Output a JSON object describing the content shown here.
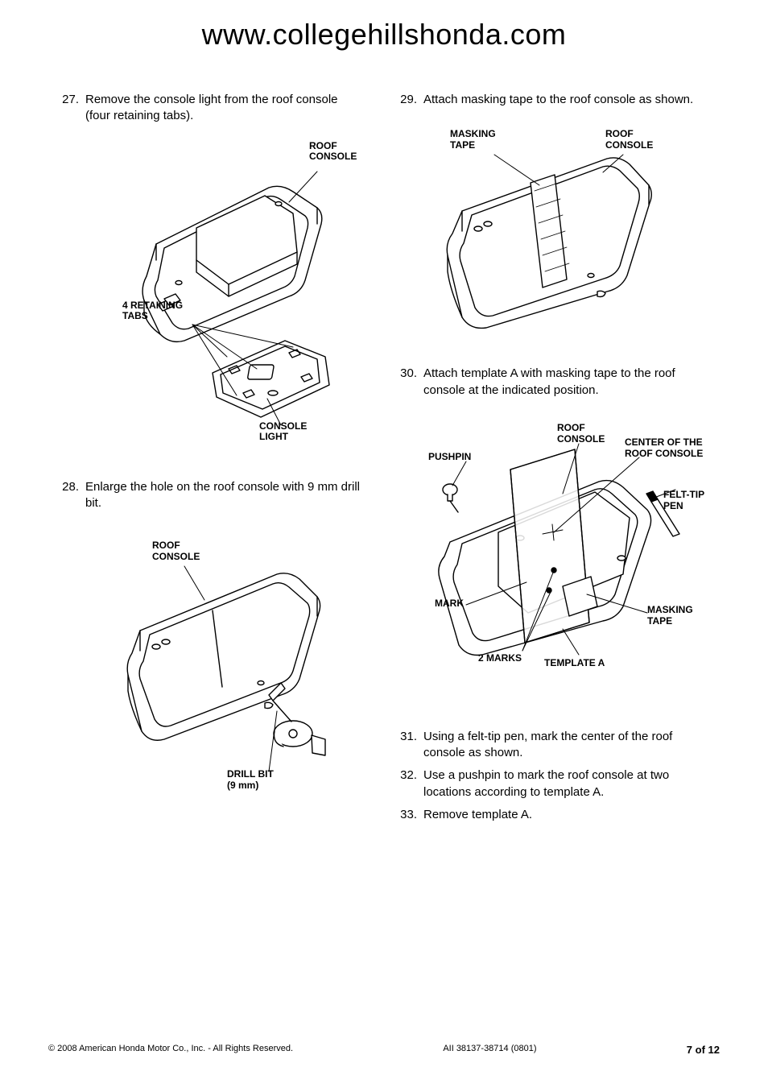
{
  "header": {
    "title": "www.collegehillshonda.com"
  },
  "steps": {
    "s27": {
      "num": "27.",
      "text": "Remove the console light from the roof console (four retaining tabs)."
    },
    "s28": {
      "num": "28.",
      "text": "Enlarge the hole on the roof console with 9 mm drill bit."
    },
    "s29": {
      "num": "29.",
      "text": "Attach masking tape to the roof console as shown."
    },
    "s30": {
      "num": "30.",
      "text": "Attach template A with masking tape to the roof console at the indicated position."
    },
    "s31": {
      "num": "31.",
      "text": "Using a felt-tip pen, mark the center of the roof console as shown."
    },
    "s32": {
      "num": "32.",
      "text": "Use a pushpin to mark the roof console at two locations according to template A."
    },
    "s33": {
      "num": "33.",
      "text": "Remove template A."
    }
  },
  "fig27": {
    "roof_console": "ROOF\nCONSOLE",
    "retaining": "4 RETAINING\nTABS",
    "console_light": "CONSOLE\nLIGHT"
  },
  "fig28": {
    "roof_console": "ROOF\nCONSOLE",
    "drill_bit": "DRILL BIT\n(9 mm)"
  },
  "fig29": {
    "masking_tape": "MASKING\nTAPE",
    "roof_console": "ROOF\nCONSOLE"
  },
  "fig30": {
    "roof_console": "ROOF\nCONSOLE",
    "pushpin": "PUSHPIN",
    "center": "CENTER OF THE\nROOF CONSOLE",
    "felt_tip": "FELT-TIP\nPEN",
    "mark": "MARK",
    "masking_tape": "MASKING\nTAPE",
    "two_marks": "2 MARKS",
    "template_a": "TEMPLATE A"
  },
  "footer": {
    "copyright": "© 2008 American Honda Motor Co., Inc. - All Rights Reserved.",
    "docid": "AII 38137-38714 (0801)",
    "page": "7 of 12"
  },
  "style": {
    "stroke": "#000000",
    "stroke_width": 1.4,
    "fill": "#ffffff"
  }
}
